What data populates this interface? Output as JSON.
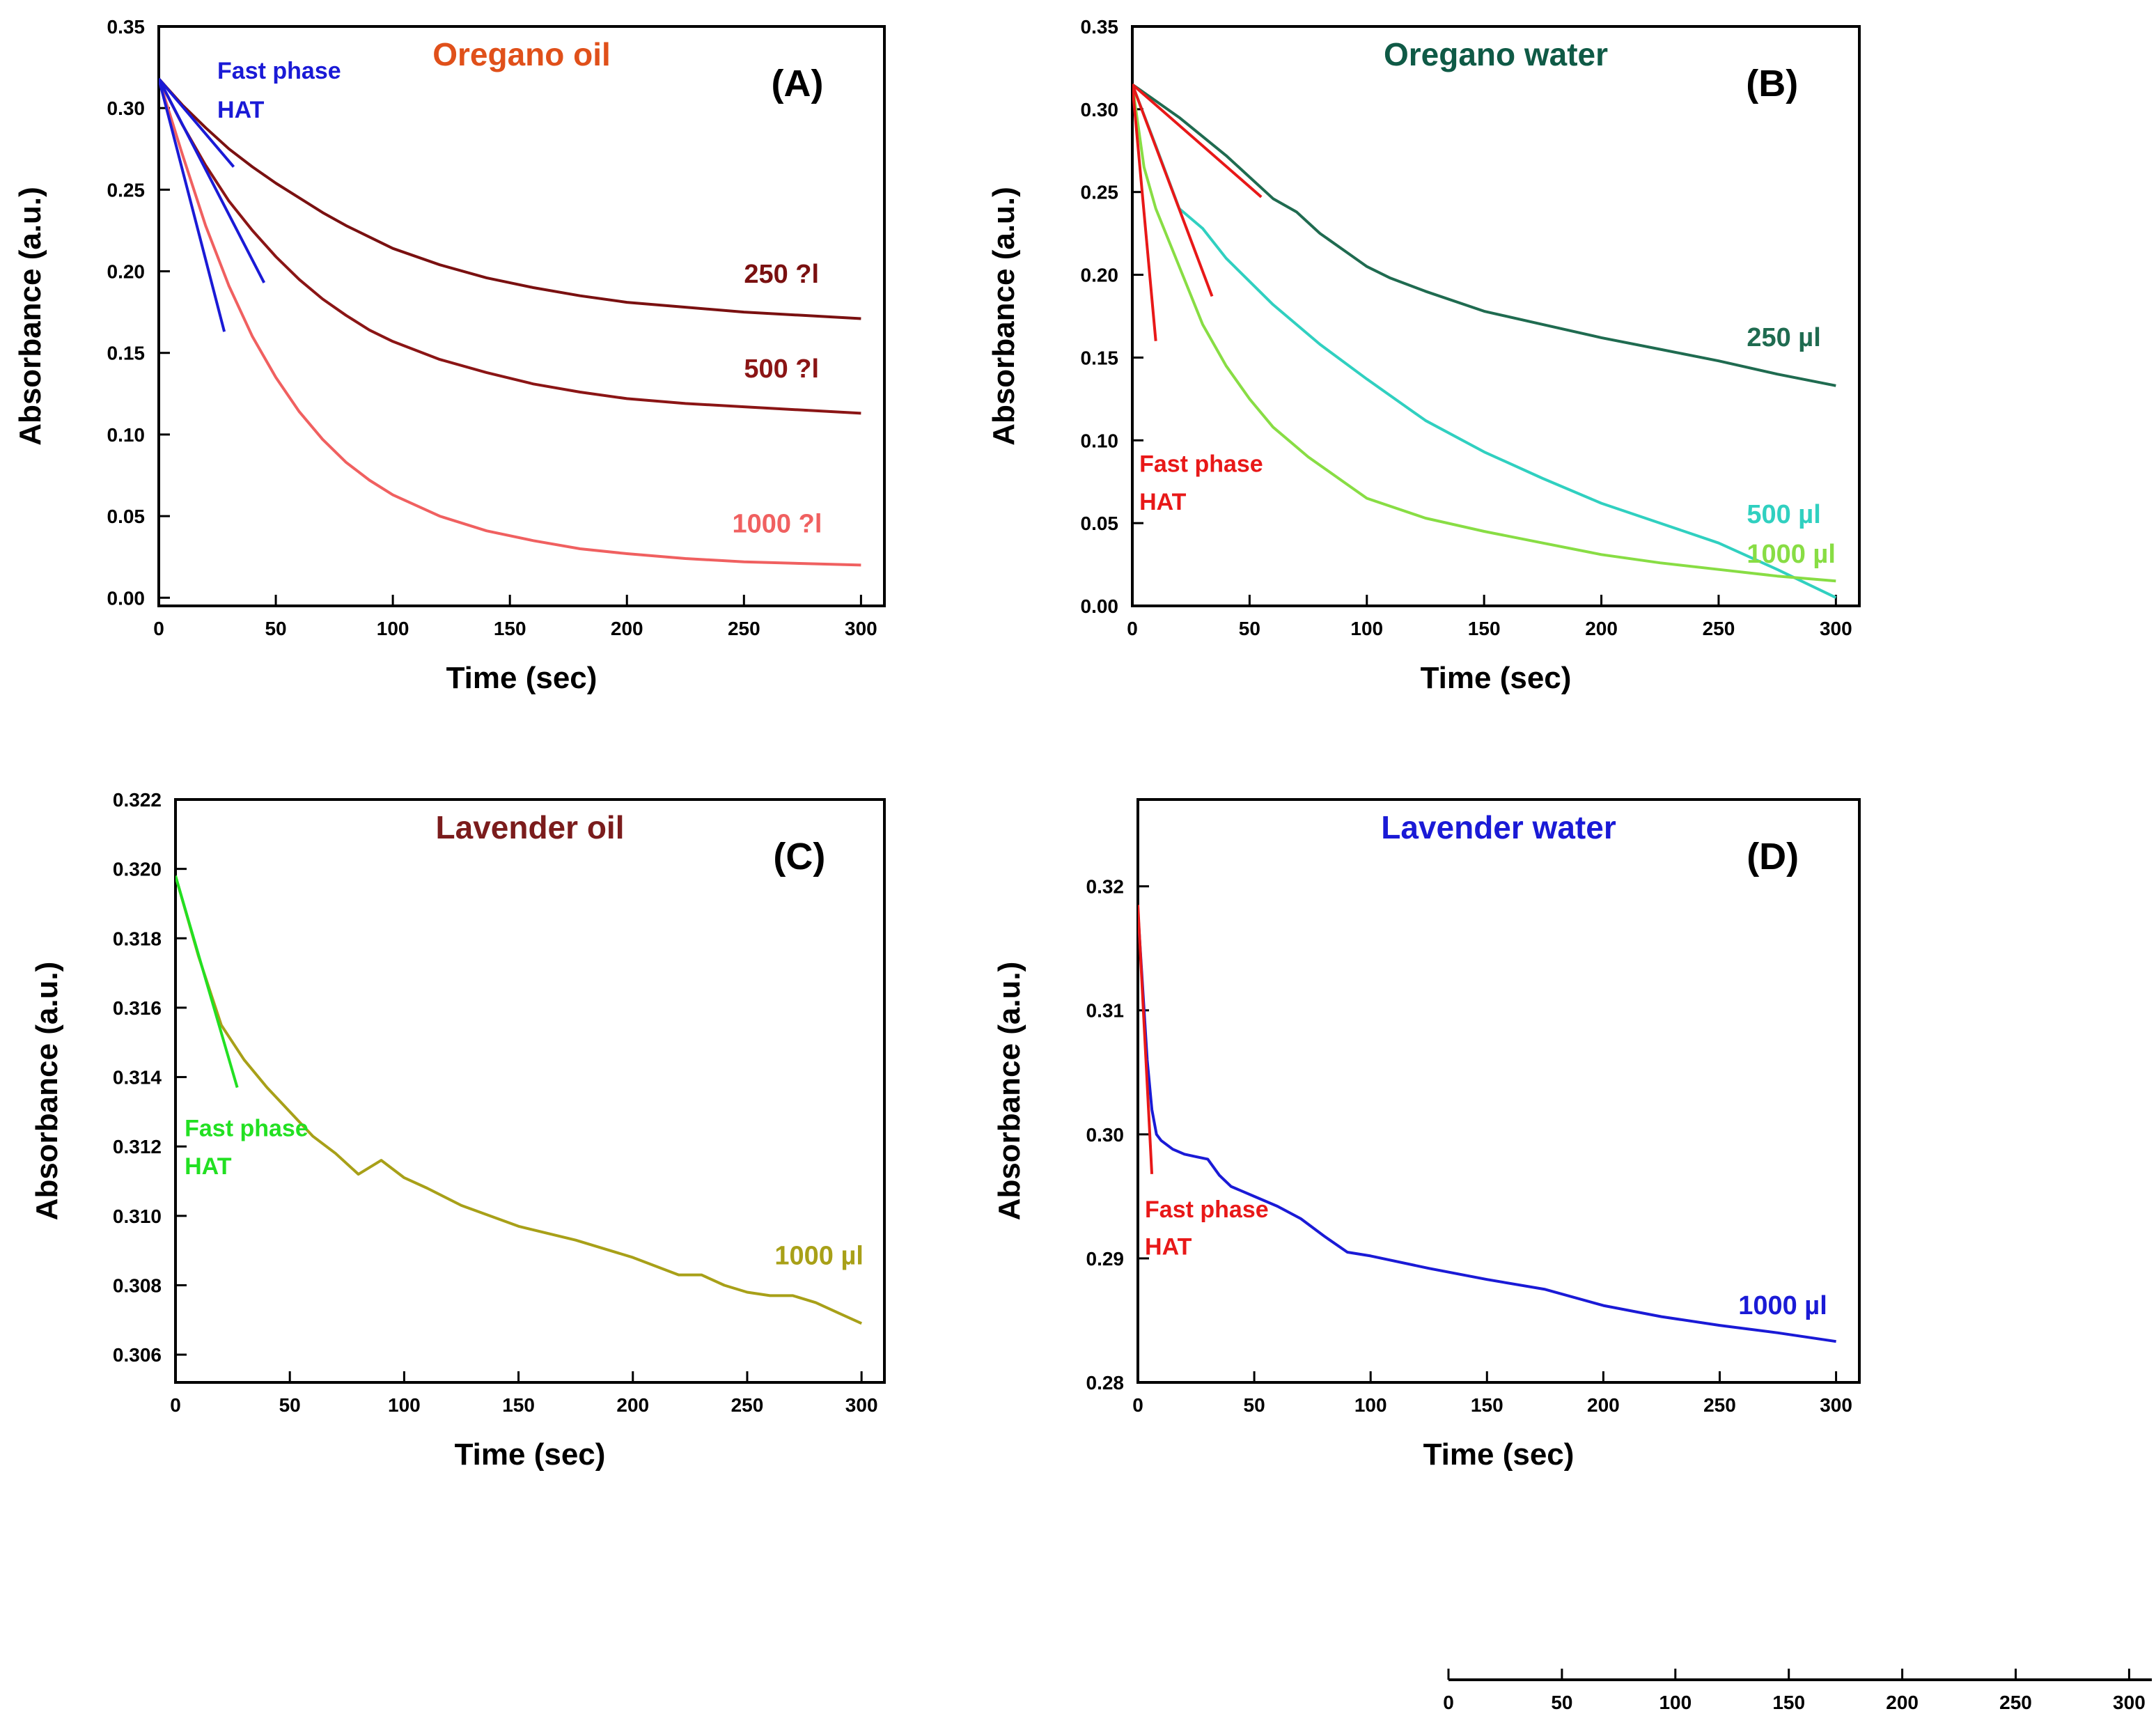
{
  "chart_data": [
    {
      "id": "A",
      "type": "line",
      "title": "Oregano oil",
      "title_color": "#e0501a",
      "panel_label": "(A)",
      "xlabel": "Time (sec)",
      "ylabel": "Absorbance (a.u.)",
      "xlim": [
        0,
        310
      ],
      "ylim": [
        -0.005,
        0.35
      ],
      "xticks": [
        "0",
        "50",
        "100",
        "150",
        "200",
        "250",
        "300"
      ],
      "yticks": [
        "0.00",
        "0.05",
        "0.10",
        "0.15",
        "0.20",
        "0.25",
        "0.30",
        "0.35"
      ],
      "series": [
        {
          "name": "250 ?l",
          "color": "#7a1010",
          "label_at": [
            250,
            0.193
          ],
          "x": [
            0,
            10,
            20,
            30,
            40,
            50,
            60,
            70,
            80,
            90,
            100,
            120,
            140,
            160,
            180,
            200,
            225,
            250,
            275,
            300
          ],
          "y": [
            0.318,
            0.302,
            0.288,
            0.275,
            0.264,
            0.254,
            0.245,
            0.236,
            0.228,
            0.221,
            0.214,
            0.204,
            0.196,
            0.19,
            0.185,
            0.181,
            0.178,
            0.175,
            0.173,
            0.171
          ]
        },
        {
          "name": "500 ?l",
          "color": "#8b1515",
          "label_at": [
            250,
            0.135
          ],
          "x": [
            0,
            10,
            20,
            30,
            40,
            50,
            60,
            70,
            80,
            90,
            100,
            120,
            140,
            160,
            180,
            200,
            225,
            250,
            275,
            300
          ],
          "y": [
            0.318,
            0.29,
            0.265,
            0.243,
            0.225,
            0.209,
            0.195,
            0.183,
            0.173,
            0.164,
            0.157,
            0.146,
            0.138,
            0.131,
            0.126,
            0.122,
            0.119,
            0.117,
            0.115,
            0.113
          ]
        },
        {
          "name": "1000 ?l",
          "color": "#f06060",
          "label_at": [
            245,
            0.04
          ],
          "x": [
            0,
            10,
            20,
            30,
            40,
            50,
            60,
            70,
            80,
            90,
            100,
            120,
            140,
            160,
            180,
            200,
            225,
            250,
            275,
            300
          ],
          "y": [
            0.318,
            0.272,
            0.228,
            0.191,
            0.16,
            0.135,
            0.114,
            0.097,
            0.083,
            0.072,
            0.063,
            0.05,
            0.041,
            0.035,
            0.03,
            0.027,
            0.024,
            0.022,
            0.021,
            0.02
          ]
        }
      ],
      "fit_lines": [
        {
          "color": "#1a1ad6",
          "x": [
            0,
            32
          ],
          "y": [
            0.318,
            0.264
          ]
        },
        {
          "color": "#1a1ad6",
          "x": [
            0,
            45
          ],
          "y": [
            0.318,
            0.193
          ]
        },
        {
          "color": "#1a1ad6",
          "x": [
            0,
            28
          ],
          "y": [
            0.318,
            0.163
          ]
        }
      ],
      "annotations": [
        {
          "text": "Fast phase",
          "color": "#1a1ad6",
          "at": [
            25,
            0.318
          ]
        },
        {
          "text": "HAT",
          "color": "#1a1ad6",
          "at": [
            25,
            0.294
          ]
        }
      ]
    },
    {
      "id": "B",
      "type": "line",
      "title": "Oregano water",
      "title_color": "#0f5a46",
      "panel_label": "(B)",
      "xlabel": "Time (sec)",
      "ylabel": "Absorbance (a.u.)",
      "xlim": [
        0,
        310
      ],
      "ylim": [
        0,
        0.35
      ],
      "xticks": [
        "0",
        "50",
        "100",
        "150",
        "200",
        "250",
        "300"
      ],
      "yticks": [
        "0.00",
        "0.05",
        "0.10",
        "0.15",
        "0.20",
        "0.25",
        "0.30",
        "0.35"
      ],
      "series": [
        {
          "name": "250 µl",
          "color": "#1f6b50",
          "label_at": [
            262,
            0.157
          ],
          "x": [
            0,
            20,
            40,
            60,
            70,
            80,
            90,
            100,
            110,
            125,
            150,
            175,
            200,
            225,
            250,
            275,
            300
          ],
          "y": [
            0.315,
            0.295,
            0.272,
            0.246,
            0.238,
            0.225,
            0.215,
            0.205,
            0.198,
            0.19,
            0.178,
            0.17,
            0.162,
            0.155,
            0.148,
            0.14,
            0.133
          ]
        },
        {
          "name": "500 µl",
          "color": "#30d0c0",
          "label_at": [
            262,
            0.05
          ],
          "x": [
            0,
            10,
            20,
            30,
            40,
            60,
            80,
            100,
            125,
            150,
            175,
            200,
            225,
            250,
            275,
            300
          ],
          "y": [
            0.315,
            0.278,
            0.24,
            0.228,
            0.21,
            0.182,
            0.158,
            0.137,
            0.112,
            0.093,
            0.077,
            0.062,
            0.05,
            0.038,
            0.022,
            0.005
          ]
        },
        {
          "name": "1000 µl",
          "color": "#88dd44",
          "label_at": [
            262,
            0.026
          ],
          "x": [
            0,
            5,
            10,
            20,
            30,
            40,
            50,
            60,
            75,
            90,
            100,
            125,
            150,
            175,
            200,
            225,
            250,
            275,
            300
          ],
          "y": [
            0.315,
            0.265,
            0.24,
            0.205,
            0.17,
            0.145,
            0.125,
            0.108,
            0.09,
            0.075,
            0.065,
            0.053,
            0.045,
            0.038,
            0.031,
            0.026,
            0.022,
            0.018,
            0.015
          ]
        }
      ],
      "fit_lines": [
        {
          "color": "#e81818",
          "x": [
            0,
            55
          ],
          "y": [
            0.315,
            0.247
          ]
        },
        {
          "color": "#e81818",
          "x": [
            0,
            34
          ],
          "y": [
            0.315,
            0.187
          ]
        },
        {
          "color": "#e81818",
          "x": [
            0,
            10
          ],
          "y": [
            0.315,
            0.16
          ]
        }
      ],
      "annotations": [
        {
          "text": "Fast phase",
          "color": "#e81818",
          "at": [
            3,
            0.081
          ]
        },
        {
          "text": "HAT",
          "color": "#e81818",
          "at": [
            3,
            0.058
          ]
        }
      ]
    },
    {
      "id": "C",
      "type": "line",
      "title": "Lavender oil",
      "title_color": "#7b1c1c",
      "panel_label": "(C)",
      "xlabel": "Time (sec)",
      "ylabel": "Absorbance (a.u.)",
      "xlim": [
        0,
        310
      ],
      "ylim": [
        0.3052,
        0.322
      ],
      "xticks": [
        "0",
        "50",
        "100",
        "150",
        "200",
        "250",
        "300"
      ],
      "yticks": [
        "0.306",
        "0.308",
        "0.310",
        "0.312",
        "0.314",
        "0.316",
        "0.318",
        "0.320",
        "0.322"
      ],
      "series": [
        {
          "name": "1000 µl",
          "color": "#a8a018",
          "label_at": [
            262,
            0.3086
          ],
          "x": [
            0,
            10,
            20,
            30,
            40,
            50,
            60,
            70,
            80,
            90,
            100,
            110,
            125,
            150,
            175,
            200,
            220,
            230,
            240,
            250,
            260,
            270,
            280,
            290,
            300
          ],
          "y": [
            0.3198,
            0.3175,
            0.3155,
            0.3145,
            0.3137,
            0.313,
            0.3123,
            0.3118,
            0.3112,
            0.3116,
            0.3111,
            0.3108,
            0.3103,
            0.3097,
            0.3093,
            0.3088,
            0.3083,
            0.3083,
            0.308,
            0.3078,
            0.3077,
            0.3077,
            0.3075,
            0.3072,
            0.3069
          ]
        }
      ],
      "fit_lines": [
        {
          "color": "#22e022",
          "x": [
            0,
            27
          ],
          "y": [
            0.3198,
            0.3137
          ]
        }
      ],
      "annotations": [
        {
          "text": "Fast phase",
          "color": "#22e022",
          "at": [
            4,
            0.3123
          ]
        },
        {
          "text": "HAT",
          "color": "#22e022",
          "at": [
            4,
            0.3112
          ]
        }
      ]
    },
    {
      "id": "D",
      "type": "line",
      "title": "Lavender water",
      "title_color": "#1a1ad6",
      "panel_label": "(D)",
      "xlabel": "Time (sec)",
      "ylabel": "Absorbance (a.u.)",
      "xlim": [
        0,
        310
      ],
      "ylim": [
        0.28,
        0.327
      ],
      "xticks": [
        "0",
        "50",
        "100",
        "150",
        "200",
        "250",
        "300"
      ],
      "yticks": [
        "0.28",
        "0.29",
        "0.30",
        "0.31",
        "0.32"
      ],
      "series": [
        {
          "name": "1000 µl",
          "color": "#1a1ad6",
          "label_at": [
            258,
            0.2855
          ],
          "x": [
            0,
            2,
            4,
            6,
            8,
            10,
            15,
            20,
            25,
            30,
            35,
            40,
            50,
            60,
            70,
            80,
            90,
            100,
            125,
            150,
            175,
            200,
            225,
            250,
            275,
            300
          ],
          "y": [
            0.318,
            0.312,
            0.306,
            0.302,
            0.3,
            0.2995,
            0.2988,
            0.2984,
            0.2982,
            0.298,
            0.2967,
            0.2958,
            0.295,
            0.2942,
            0.2932,
            0.2918,
            0.2905,
            0.2902,
            0.2892,
            0.2883,
            0.2875,
            0.2862,
            0.2853,
            0.2846,
            0.284,
            0.2833
          ]
        }
      ],
      "fit_lines": [
        {
          "color": "#e81818",
          "x": [
            0,
            6
          ],
          "y": [
            0.3185,
            0.2968
          ]
        }
      ],
      "annotations": [
        {
          "text": "Fast phase",
          "color": "#e81818",
          "at": [
            3,
            0.2933
          ]
        },
        {
          "text": "HAT",
          "color": "#e81818",
          "at": [
            3,
            0.2903
          ]
        }
      ]
    },
    {
      "id": "E",
      "type": "line",
      "title": "",
      "xlabel": "",
      "ylabel": "",
      "xlim": [
        0,
        310
      ],
      "xticks": [
        "0",
        "50",
        "100",
        "150",
        "200",
        "250",
        "300"
      ],
      "series": []
    }
  ]
}
